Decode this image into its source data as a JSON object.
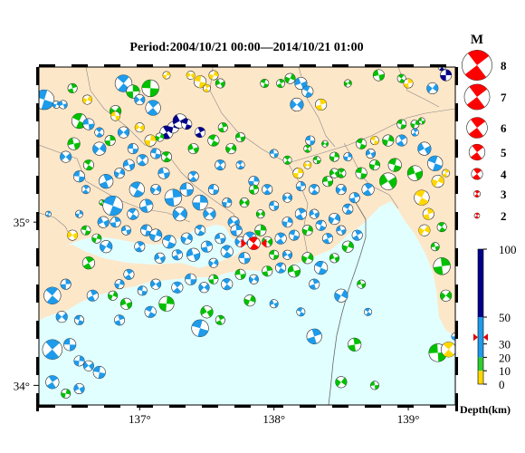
{
  "title": "Period:2004/10/21 00:00––2014/10/21 01:00",
  "map": {
    "lon_range": [
      136.25,
      139.35
    ],
    "lat_range": [
      33.88,
      35.95
    ],
    "lon_ticks": [
      {
        "value": 137,
        "label": "137°"
      },
      {
        "value": 138,
        "label": "138°"
      },
      {
        "value": 139,
        "label": "139°"
      }
    ],
    "lat_ticks": [
      {
        "value": 35,
        "label": "35°"
      },
      {
        "value": 34,
        "label": "34°"
      }
    ],
    "land_color": "#fde7c9",
    "sea_color": "#e1ffff",
    "mainshock": {
      "lon": 137.85,
      "lat": 34.87,
      "color": "#ff0000"
    }
  },
  "magnitude_legend": {
    "title": "M",
    "levels": [
      8,
      7,
      6,
      5,
      4,
      3,
      2
    ],
    "labels": [
      "8",
      "7",
      "6",
      "5",
      "4",
      "3",
      "2"
    ],
    "color": "#ff0000"
  },
  "depth_legend": {
    "title": "Depth(km)",
    "ticks": [
      {
        "value": 100,
        "label": "100"
      },
      {
        "value": 50,
        "label": "50"
      },
      {
        "value": 30,
        "label": "30"
      },
      {
        "value": 20,
        "label": "20"
      },
      {
        "value": 10,
        "label": "10"
      },
      {
        "value": 0,
        "label": "0"
      }
    ],
    "bands": [
      {
        "from": 0,
        "to": 10,
        "color": "#ffd700"
      },
      {
        "from": 10,
        "to": 20,
        "color": "#2ecc2e"
      },
      {
        "from": 20,
        "to": 50,
        "color": "#1e9bea"
      },
      {
        "from": 50,
        "to": 100,
        "color": "#00008b"
      }
    ],
    "marker_depth": 35
  },
  "events": [
    [
      136.29,
      35.75,
      4.5,
      "#1e9bea"
    ],
    [
      136.32,
      35.05,
      3,
      "#1e9bea"
    ],
    [
      136.38,
      35.72,
      3.2,
      "#1e9bea"
    ],
    [
      136.43,
      35.72,
      3.3,
      "#1e9bea"
    ],
    [
      136.55,
      35.62,
      4,
      "#00c000"
    ],
    [
      136.5,
      35.82,
      3.4,
      "#00c000"
    ],
    [
      136.61,
      35.75,
      3.4,
      "#ffd700"
    ],
    [
      136.51,
      35.48,
      3.7,
      "#00c000"
    ],
    [
      136.62,
      35.35,
      3.5,
      "#00c000"
    ],
    [
      136.72,
      35.12,
      3,
      "#00c000"
    ],
    [
      136.82,
      35.68,
      3.6,
      "#00c000"
    ],
    [
      136.82,
      35.65,
      3.4,
      "#ffd700"
    ],
    [
      136.88,
      35.85,
      4.2,
      "#1e9bea"
    ],
    [
      136.95,
      35.8,
      3.8,
      "#00c000"
    ],
    [
      137.0,
      35.75,
      3.5,
      "#1e9bea"
    ],
    [
      137.08,
      35.82,
      4.2,
      "#00c000"
    ],
    [
      137.1,
      35.7,
      4,
      "#1e9bea"
    ],
    [
      137.2,
      35.9,
      3.2,
      "#ffd700"
    ],
    [
      137.38,
      35.9,
      3.3,
      "#ffd700"
    ],
    [
      137.45,
      35.86,
      3.7,
      "#ffd700"
    ],
    [
      137.5,
      35.82,
      3.2,
      "#ffd700"
    ],
    [
      137.55,
      35.9,
      3.4,
      "#ffd700"
    ],
    [
      137.6,
      35.85,
      3.4,
      "#00c000"
    ],
    [
      137.93,
      35.85,
      3.3,
      "#00c000"
    ],
    [
      138.05,
      35.85,
      3.3,
      "#00c000"
    ],
    [
      138.12,
      35.88,
      3.5,
      "#00c000"
    ],
    [
      138.2,
      35.85,
      3.7,
      "#1e9bea"
    ],
    [
      138.25,
      35.8,
      3.6,
      "#1e9bea"
    ],
    [
      138.35,
      35.72,
      3.6,
      "#ffd700"
    ],
    [
      138.55,
      35.85,
      3.2,
      "#00c000"
    ],
    [
      138.78,
      35.9,
      3.6,
      "#00c000"
    ],
    [
      138.95,
      35.88,
      3.3,
      "#00c000"
    ],
    [
      139.0,
      35.85,
      3.4,
      "#ffd700"
    ],
    [
      139.18,
      35.82,
      3.6,
      "#1e9bea"
    ],
    [
      139.1,
      35.62,
      3.1,
      "#00c000"
    ],
    [
      139.25,
      35.95,
      3.2,
      "#00008b"
    ],
    [
      139.28,
      35.9,
      3.6,
      "#00008b"
    ],
    [
      138.17,
      35.72,
      3.8,
      "#1e9bea"
    ],
    [
      138.27,
      35.5,
      3.4,
      "#1e9bea"
    ],
    [
      138.25,
      35.45,
      3.2,
      "#00c000"
    ],
    [
      138.45,
      35.4,
      3.4,
      "#00c000"
    ],
    [
      138.38,
      35.48,
      3.1,
      "#00c000"
    ],
    [
      138.75,
      35.5,
      3.3,
      "#ffd700"
    ],
    [
      138.95,
      35.5,
      3.6,
      "#1e9bea"
    ],
    [
      139.05,
      35.6,
      3.3,
      "#00c000"
    ],
    [
      139.12,
      35.45,
      3.8,
      "#1e9bea"
    ],
    [
      139.2,
      35.36,
      4,
      "#1e9bea"
    ],
    [
      139.28,
      35.3,
      3.2,
      "#ffd700"
    ],
    [
      139.22,
      35.25,
      3.7,
      "#ffd700"
    ],
    [
      139.05,
      35.3,
      4,
      "#00c000"
    ],
    [
      139.1,
      35.15,
      4,
      "#ffd700"
    ],
    [
      139.15,
      35.05,
      3.6,
      "#ffd700"
    ],
    [
      139.12,
      34.95,
      3.6,
      "#ffd700"
    ],
    [
      139.2,
      34.85,
      3.3,
      "#00c000"
    ],
    [
      139.25,
      34.97,
      3.4,
      "#00c000"
    ],
    [
      139.25,
      34.73,
      4.2,
      "#00c000"
    ],
    [
      139.28,
      34.55,
      3.6,
      "#00c000"
    ],
    [
      139.22,
      34.2,
      4.3,
      "#00c000"
    ],
    [
      139.3,
      34.22,
      4,
      "#ffd700"
    ],
    [
      139.35,
      34.3,
      3.2,
      "#1e9bea"
    ],
    [
      136.45,
      35.4,
      3.6,
      "#1e9bea"
    ],
    [
      136.55,
      35.28,
      3.6,
      "#1e9bea"
    ],
    [
      136.6,
      35.2,
      3.3,
      "#1e9bea"
    ],
    [
      136.55,
      35.05,
      3.2,
      "#1e9bea"
    ],
    [
      136.5,
      34.92,
      3.5,
      "#ffd700"
    ],
    [
      136.6,
      34.95,
      3.4,
      "#00c000"
    ],
    [
      136.62,
      34.75,
      3.7,
      "#00c000"
    ],
    [
      136.68,
      34.9,
      3.4,
      "#00c000"
    ],
    [
      136.73,
      35.0,
      3.6,
      "#1e9bea"
    ],
    [
      136.8,
      35.1,
      4.5,
      "#1e9bea"
    ],
    [
      136.75,
      35.25,
      3.9,
      "#1e9bea"
    ],
    [
      136.85,
      35.3,
      3.5,
      "#1e9bea"
    ],
    [
      136.92,
      35.35,
      3.6,
      "#1e9bea"
    ],
    [
      136.98,
      35.2,
      4,
      "#1e9bea"
    ],
    [
      137.05,
      35.1,
      3.8,
      "#1e9bea"
    ],
    [
      137.12,
      35.2,
      3.5,
      "#1e9bea"
    ],
    [
      137.18,
      35.3,
      3.6,
      "#1e9bea"
    ],
    [
      137.2,
      35.4,
      3.5,
      "#00c000"
    ],
    [
      137.25,
      35.15,
      4.2,
      "#1e9bea"
    ],
    [
      137.3,
      35.05,
      3.9,
      "#1e9bea"
    ],
    [
      137.35,
      35.2,
      3.8,
      "#1e9bea"
    ],
    [
      137.4,
      35.28,
      3.5,
      "#1e9bea"
    ],
    [
      137.45,
      35.12,
      4,
      "#1e9bea"
    ],
    [
      137.52,
      35.05,
      3.7,
      "#1e9bea"
    ],
    [
      137.55,
      35.2,
      3.5,
      "#1e9bea"
    ],
    [
      137.6,
      35.35,
      3.5,
      "#1e9bea"
    ],
    [
      137.65,
      35.12,
      3.4,
      "#1e9bea"
    ],
    [
      137.7,
      35.0,
      3.6,
      "#1e9bea"
    ],
    [
      137.05,
      34.95,
      3.6,
      "#1e9bea"
    ],
    [
      137.0,
      34.85,
      3.5,
      "#1e9bea"
    ],
    [
      137.12,
      34.92,
      3.7,
      "#1e9bea"
    ],
    [
      137.15,
      34.78,
      3.5,
      "#1e9bea"
    ],
    [
      137.22,
      34.88,
      3.8,
      "#1e9bea"
    ],
    [
      137.28,
      34.8,
      3.5,
      "#1e9bea"
    ],
    [
      137.35,
      34.9,
      3.6,
      "#1e9bea"
    ],
    [
      137.4,
      34.8,
      3.8,
      "#1e9bea"
    ],
    [
      137.45,
      34.95,
      3.5,
      "#1e9bea"
    ],
    [
      137.5,
      34.85,
      3.6,
      "#1e9bea"
    ],
    [
      137.55,
      34.75,
      3.4,
      "#1e9bea"
    ],
    [
      137.6,
      34.9,
      3.5,
      "#1e9bea"
    ],
    [
      137.65,
      34.82,
      3.7,
      "#1e9bea"
    ],
    [
      137.72,
      34.95,
      3.6,
      "#1e9bea"
    ],
    [
      137.75,
      34.88,
      3.5,
      "#1e9bea"
    ],
    [
      137.78,
      34.78,
      3.6,
      "#1e9bea"
    ],
    [
      137.82,
      34.9,
      3.8,
      "#1e9bea"
    ],
    [
      137.9,
      34.95,
      3.6,
      "#00c000"
    ],
    [
      137.95,
      34.88,
      3.5,
      "#00c000"
    ],
    [
      138.0,
      34.8,
      3.4,
      "#00c000"
    ],
    [
      138.05,
      34.9,
      3.6,
      "#1e9bea"
    ],
    [
      138.1,
      35.0,
      3.5,
      "#1e9bea"
    ],
    [
      138.1,
      34.8,
      3.4,
      "#1e9bea"
    ],
    [
      138.15,
      34.92,
      3.5,
      "#1e9bea"
    ],
    [
      138.2,
      35.05,
      3.6,
      "#1e9bea"
    ],
    [
      138.25,
      34.95,
      3.5,
      "#00c000"
    ],
    [
      138.3,
      35.05,
      3.4,
      "#1e9bea"
    ],
    [
      138.35,
      34.98,
      3.5,
      "#1e9bea"
    ],
    [
      138.4,
      34.9,
      3.5,
      "#1e9bea"
    ],
    [
      138.45,
      35.02,
      3.6,
      "#1e9bea"
    ],
    [
      138.5,
      34.95,
      3.4,
      "#1e9bea"
    ],
    [
      138.55,
      35.08,
      3.5,
      "#1e9bea"
    ],
    [
      138.6,
      35.15,
      3.5,
      "#1e9bea"
    ],
    [
      138.5,
      35.2,
      3.5,
      "#1e9bea"
    ],
    [
      138.4,
      35.25,
      3.5,
      "#00c000"
    ],
    [
      138.3,
      35.2,
      3.5,
      "#1e9bea"
    ],
    [
      138.2,
      35.22,
      3.4,
      "#1e9bea"
    ],
    [
      138.1,
      35.15,
      3.4,
      "#1e9bea"
    ],
    [
      138.0,
      35.1,
      3.4,
      "#1e9bea"
    ],
    [
      137.95,
      35.2,
      3.5,
      "#1e9bea"
    ],
    [
      137.85,
      35.25,
      3.5,
      "#1e9bea"
    ],
    [
      137.78,
      35.12,
      3.4,
      "#00c000"
    ],
    [
      138.65,
      35.3,
      3.6,
      "#00c000"
    ],
    [
      138.7,
      35.2,
      3.7,
      "#1e9bea"
    ],
    [
      138.75,
      35.35,
      3.5,
      "#00c000"
    ],
    [
      138.85,
      35.25,
      4.2,
      "#00c000"
    ],
    [
      138.9,
      35.35,
      3.8,
      "#00c000"
    ],
    [
      138.62,
      34.92,
      3.5,
      "#1e9bea"
    ],
    [
      138.55,
      34.85,
      3.6,
      "#00c000"
    ],
    [
      138.45,
      34.78,
      3.4,
      "#00c000"
    ],
    [
      138.35,
      34.72,
      3.8,
      "#1e9bea"
    ],
    [
      138.3,
      34.62,
      3.5,
      "#1e9bea"
    ],
    [
      138.25,
      34.78,
      3.6,
      "#00c000"
    ],
    [
      138.15,
      34.7,
      3.7,
      "#00c000"
    ],
    [
      138.05,
      34.72,
      3.5,
      "#1e9bea"
    ],
    [
      137.95,
      34.7,
      3.5,
      "#00c000"
    ],
    [
      137.85,
      34.65,
      3.4,
      "#1e9bea"
    ],
    [
      137.75,
      34.68,
      3.5,
      "#00c000"
    ],
    [
      137.65,
      34.62,
      3.6,
      "#1e9bea"
    ],
    [
      137.55,
      34.65,
      3.4,
      "#00c000"
    ],
    [
      137.48,
      34.6,
      3.5,
      "#1e9bea"
    ],
    [
      137.38,
      34.65,
      3.6,
      "#1e9bea"
    ],
    [
      137.28,
      34.6,
      3.6,
      "#1e9bea"
    ],
    [
      137.2,
      34.5,
      4,
      "#00c000"
    ],
    [
      137.12,
      34.62,
      3.5,
      "#1e9bea"
    ],
    [
      137.02,
      34.58,
      3.4,
      "#1e9bea"
    ],
    [
      136.92,
      34.68,
      3.5,
      "#1e9bea"
    ],
    [
      136.85,
      34.62,
      3.4,
      "#1e9bea"
    ],
    [
      137.5,
      34.45,
      3.7,
      "#00c000"
    ],
    [
      137.45,
      34.35,
      4.2,
      "#1e9bea"
    ],
    [
      137.6,
      34.4,
      3.4,
      "#00c000"
    ],
    [
      137.82,
      34.52,
      3.6,
      "#00c000"
    ],
    [
      138.0,
      34.5,
      3.3,
      "#1e9bea"
    ],
    [
      138.2,
      34.45,
      3.3,
      "#1e9bea"
    ],
    [
      138.3,
      34.3,
      4,
      "#1e9bea"
    ],
    [
      138.5,
      34.55,
      3.8,
      "#1e9bea"
    ],
    [
      138.65,
      34.62,
      3.3,
      "#00c000"
    ],
    [
      138.7,
      34.45,
      3.2,
      "#1e9bea"
    ],
    [
      138.6,
      34.25,
      3.8,
      "#00c000"
    ],
    [
      138.5,
      34.02,
      3.6,
      "#00c000"
    ],
    [
      138.75,
      34.0,
      3.3,
      "#00c000"
    ],
    [
      136.35,
      34.55,
      4.2,
      "#1e9bea"
    ],
    [
      136.45,
      34.62,
      3.5,
      "#1e9bea"
    ],
    [
      136.42,
      34.42,
      3.6,
      "#1e9bea"
    ],
    [
      136.48,
      34.25,
      3.7,
      "#1e9bea"
    ],
    [
      136.35,
      34.22,
      4.5,
      "#1e9bea"
    ],
    [
      136.55,
      34.15,
      3.5,
      "#1e9bea"
    ],
    [
      136.62,
      34.12,
      3.5,
      "#1e9bea"
    ],
    [
      136.7,
      34.08,
      3.7,
      "#1e9bea"
    ],
    [
      136.35,
      34.02,
      3.8,
      "#1e9bea"
    ],
    [
      136.45,
      33.95,
      3.4,
      "#00c000"
    ],
    [
      136.55,
      33.98,
      3.5,
      "#1e9bea"
    ],
    [
      136.55,
      34.4,
      3.4,
      "#1e9bea"
    ],
    [
      136.65,
      34.55,
      3.6,
      "#1e9bea"
    ],
    [
      136.8,
      34.55,
      3.4,
      "#00c000"
    ],
    [
      136.9,
      34.5,
      3.6,
      "#00c000"
    ],
    [
      137.08,
      34.45,
      3.6,
      "#1e9bea"
    ],
    [
      136.85,
      34.4,
      3.5,
      "#1e9bea"
    ],
    [
      136.75,
      34.85,
      3.7,
      "#1e9bea"
    ],
    [
      136.9,
      34.95,
      3.4,
      "#1e9bea"
    ],
    [
      136.95,
      35.05,
      3.6,
      "#1e9bea"
    ],
    [
      136.82,
      35.0,
      3.5,
      "#1e9bea"
    ],
    [
      136.7,
      35.45,
      3.8,
      "#1e9bea"
    ],
    [
      136.62,
      35.6,
      3.6,
      "#1e9bea"
    ],
    [
      136.7,
      35.55,
      3.4,
      "#1e9bea"
    ],
    [
      136.78,
      35.5,
      3.5,
      "#00c000"
    ],
    [
      136.88,
      35.55,
      3.6,
      "#1e9bea"
    ],
    [
      136.95,
      35.45,
      3.5,
      "#1e9bea"
    ],
    [
      137.02,
      35.38,
      3.6,
      "#1e9bea"
    ],
    [
      137.08,
      35.5,
      3.6,
      "#ffd700"
    ],
    [
      137.0,
      35.58,
      3.4,
      "#ffd700"
    ],
    [
      137.12,
      35.42,
      3.5,
      "#1e9bea"
    ],
    [
      137.2,
      35.55,
      3.8,
      "#00008b"
    ],
    [
      137.25,
      35.58,
      3.6,
      "#00008b"
    ],
    [
      137.3,
      35.62,
      3.9,
      "#00008b"
    ],
    [
      137.35,
      35.6,
      3.5,
      "#00008b"
    ],
    [
      137.45,
      35.55,
      3.5,
      "#00008b"
    ],
    [
      137.15,
      35.52,
      3.3,
      "#00c000"
    ],
    [
      137.4,
      35.45,
      3.5,
      "#00c000"
    ],
    [
      137.55,
      35.5,
      3.6,
      "#00c000"
    ],
    [
      137.62,
      35.58,
      3.4,
      "#00c000"
    ],
    [
      137.68,
      35.45,
      3.5,
      "#00c000"
    ],
    [
      137.75,
      35.52,
      3.4,
      "#00c000"
    ],
    [
      137.75,
      35.35,
      3.3,
      "#1e9bea"
    ],
    [
      137.85,
      35.2,
      3.4,
      "#00c000"
    ],
    [
      137.9,
      35.05,
      3.3,
      "#00c000"
    ],
    [
      138.0,
      35.42,
      3.3,
      "#1e9bea"
    ],
    [
      138.1,
      35.38,
      3.3,
      "#00c000"
    ],
    [
      138.18,
      35.3,
      3.5,
      "#ffd700"
    ],
    [
      138.25,
      35.35,
      3.2,
      "#ffd700"
    ],
    [
      138.32,
      35.38,
      3.2,
      "#00c000"
    ],
    [
      138.5,
      35.3,
      3.4,
      "#00c000"
    ],
    [
      138.55,
      35.4,
      3.3,
      "#1e9bea"
    ],
    [
      138.45,
      35.3,
      3.4,
      "#00c000"
    ],
    [
      138.95,
      35.6,
      3.4,
      "#00c000"
    ],
    [
      139.05,
      35.55,
      3.2,
      "#1e9bea"
    ],
    [
      138.85,
      35.5,
      3.6,
      "#00c000"
    ],
    [
      138.72,
      35.42,
      3.4,
      "#1e9bea"
    ],
    [
      138.65,
      35.48,
      3.5,
      "#00c000"
    ]
  ]
}
